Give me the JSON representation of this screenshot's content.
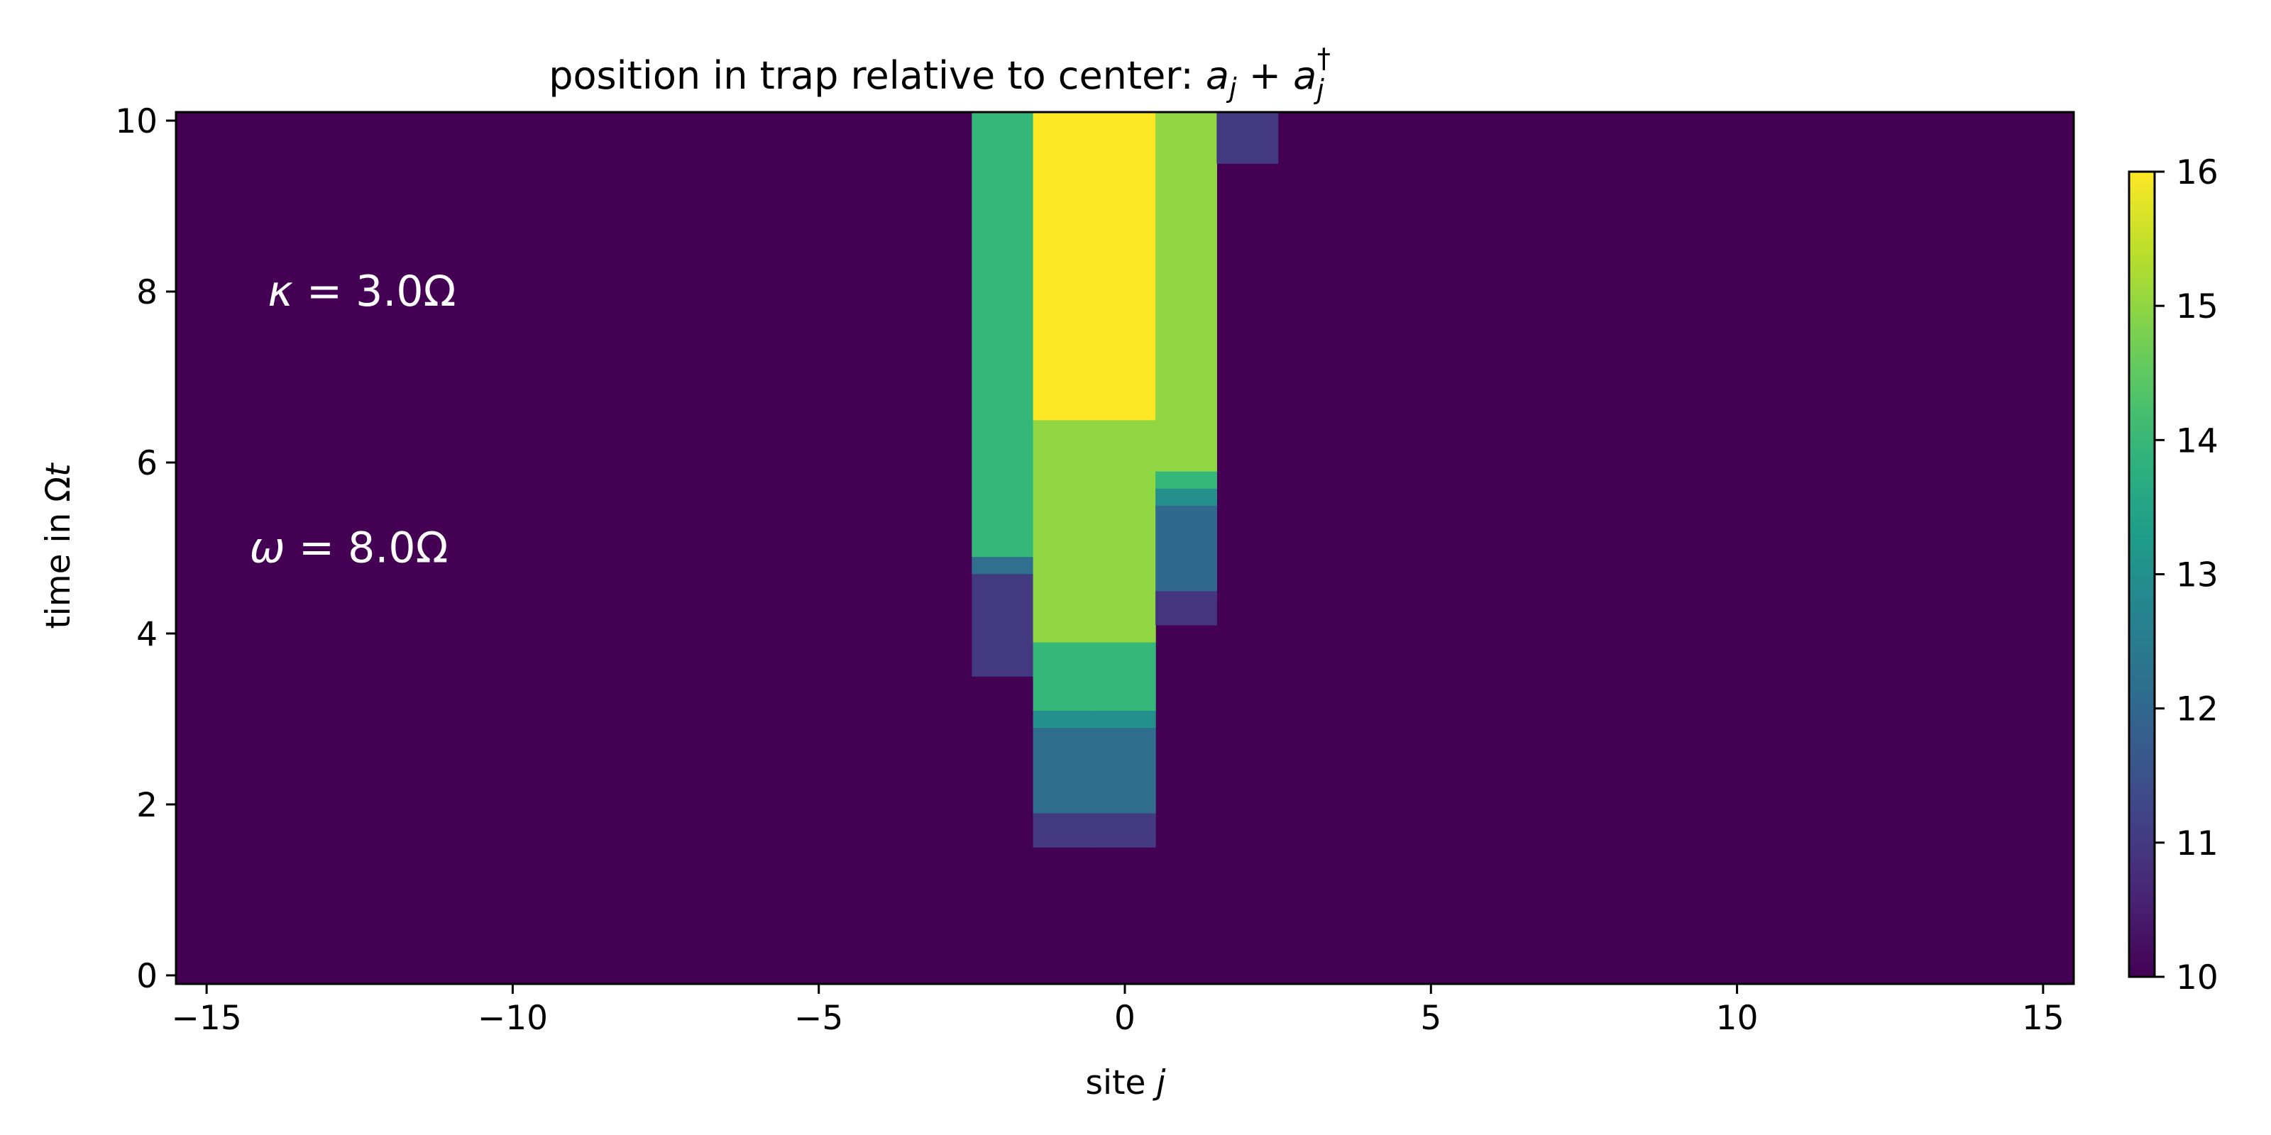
{
  "chart_data": {
    "type": "heatmap",
    "title": {
      "prefix": "position in trap relative to center: ",
      "math_a1": "a",
      "math_sub1": "j",
      "math_plus": " + ",
      "math_a2": "a",
      "math_sub2": "j",
      "math_dagger": "†"
    },
    "xlabel": {
      "text": "site ",
      "var": "j"
    },
    "ylabel": {
      "text": "time in Ω",
      "var": "t"
    },
    "xlim": [
      -15.5,
      15.5
    ],
    "ylim": [
      -0.1,
      10.1
    ],
    "x_ticks": [
      -15,
      -10,
      -5,
      0,
      5,
      10,
      15
    ],
    "x_tick_labels": [
      "−15",
      "−10",
      "−5",
      "0",
      "5",
      "10",
      "15"
    ],
    "y_ticks": [
      0,
      2,
      4,
      6,
      8,
      10
    ],
    "y_tick_labels": [
      "0",
      "2",
      "4",
      "6",
      "8",
      "10"
    ],
    "colorbar": {
      "colormap": "viridis",
      "range": [
        10,
        16
      ],
      "ticks": [
        10,
        11,
        12,
        13,
        14,
        15,
        16
      ],
      "tick_labels": [
        "10",
        "11",
        "12",
        "13",
        "14",
        "15",
        "16"
      ]
    },
    "background_value": 10,
    "cells": [
      {
        "site": -2,
        "t_start": 3.5,
        "t_end": 4.7,
        "value": 11.0
      },
      {
        "site": -2,
        "t_start": 4.7,
        "t_end": 4.9,
        "value": 12.2
      },
      {
        "site": -2,
        "t_start": 4.9,
        "t_end": 10.1,
        "value": 14.0
      },
      {
        "site": -1,
        "t_start": 1.5,
        "t_end": 1.9,
        "value": 11.0
      },
      {
        "site": -1,
        "t_start": 1.9,
        "t_end": 2.9,
        "value": 12.1
      },
      {
        "site": -1,
        "t_start": 2.9,
        "t_end": 3.1,
        "value": 13.0
      },
      {
        "site": -1,
        "t_start": 3.1,
        "t_end": 3.9,
        "value": 14.0
      },
      {
        "site": -1,
        "t_start": 3.9,
        "t_end": 6.5,
        "value": 15.0
      },
      {
        "site": -1,
        "t_start": 6.5,
        "t_end": 10.1,
        "value": 16.0
      },
      {
        "site": 0,
        "t_start": 1.5,
        "t_end": 1.9,
        "value": 11.0
      },
      {
        "site": 0,
        "t_start": 1.9,
        "t_end": 2.9,
        "value": 12.1
      },
      {
        "site": 0,
        "t_start": 2.9,
        "t_end": 3.1,
        "value": 13.0
      },
      {
        "site": 0,
        "t_start": 3.1,
        "t_end": 3.9,
        "value": 14.0
      },
      {
        "site": 0,
        "t_start": 3.9,
        "t_end": 6.5,
        "value": 15.0
      },
      {
        "site": 0,
        "t_start": 6.5,
        "t_end": 10.1,
        "value": 16.0
      },
      {
        "site": 1,
        "t_start": 4.1,
        "t_end": 4.5,
        "value": 10.9
      },
      {
        "site": 1,
        "t_start": 4.5,
        "t_end": 5.5,
        "value": 12.0
      },
      {
        "site": 1,
        "t_start": 5.5,
        "t_end": 5.7,
        "value": 13.0
      },
      {
        "site": 1,
        "t_start": 5.7,
        "t_end": 5.9,
        "value": 14.0
      },
      {
        "site": 1,
        "t_start": 5.9,
        "t_end": 10.1,
        "value": 15.0
      },
      {
        "site": 2,
        "t_start": 9.5,
        "t_end": 10.1,
        "value": 11.0
      }
    ],
    "annotations": [
      {
        "var": "κ",
        "text": " = 3.0Ω",
        "x": -14.0,
        "y": 8.0
      },
      {
        "var": "ω",
        "text": " = 8.0Ω",
        "x": -14.3,
        "y": 5.0
      }
    ],
    "grid": false
  }
}
